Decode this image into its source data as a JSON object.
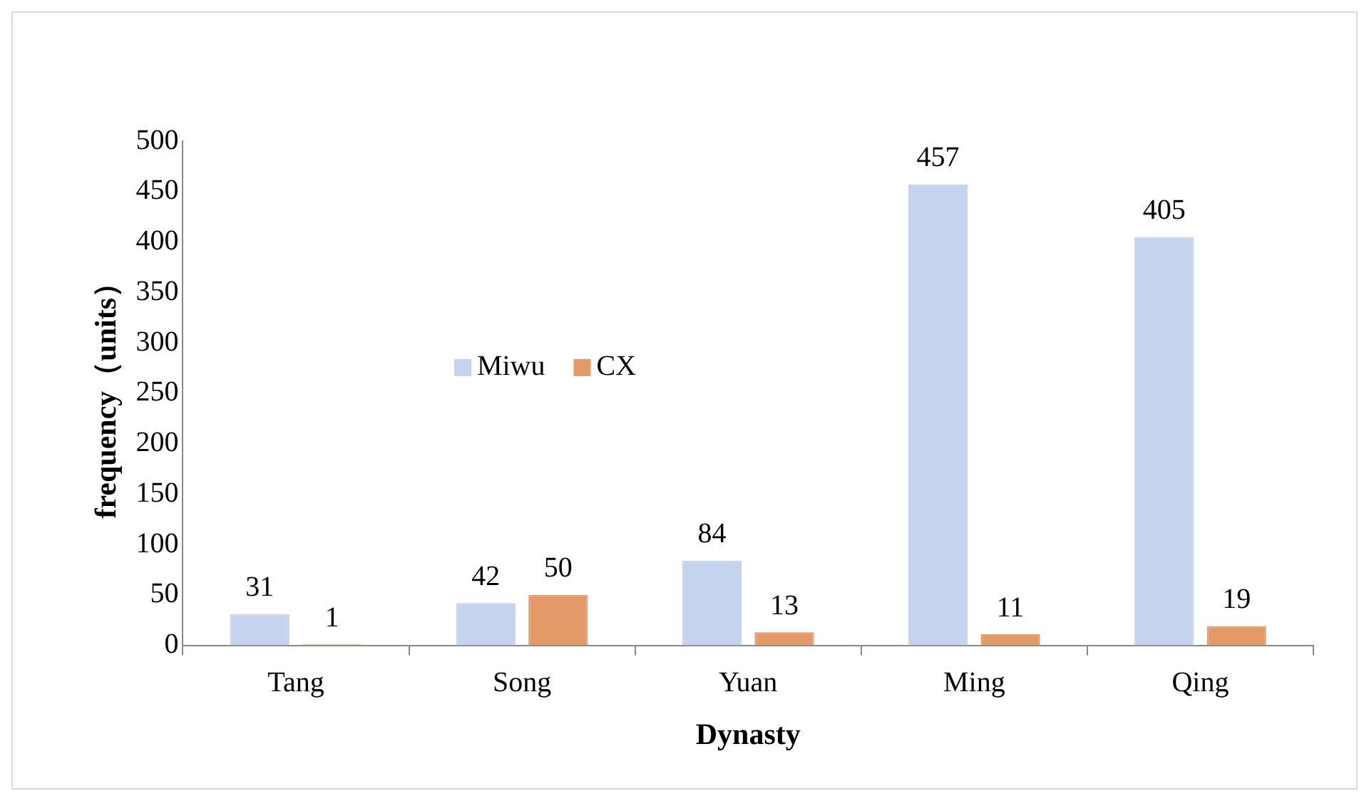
{
  "chart_data": {
    "type": "bar",
    "xlabel": "Dynasty",
    "ylabel": "frequency（units）",
    "categories": [
      "Tang",
      "Song",
      "Yuan",
      "Ming",
      "Qing"
    ],
    "series": [
      {
        "name": "Miwu",
        "color": "#c5d3ee",
        "values": [
          31,
          42,
          84,
          457,
          405
        ]
      },
      {
        "name": "CX",
        "color": "#e39a68",
        "values": [
          1,
          50,
          13,
          11,
          19
        ]
      }
    ],
    "ylim": [
      0,
      500
    ],
    "yticks": [
      0,
      50,
      100,
      150,
      200,
      250,
      300,
      350,
      400,
      450,
      500
    ],
    "grid": false,
    "legend": "left",
    "data_labels": true
  }
}
